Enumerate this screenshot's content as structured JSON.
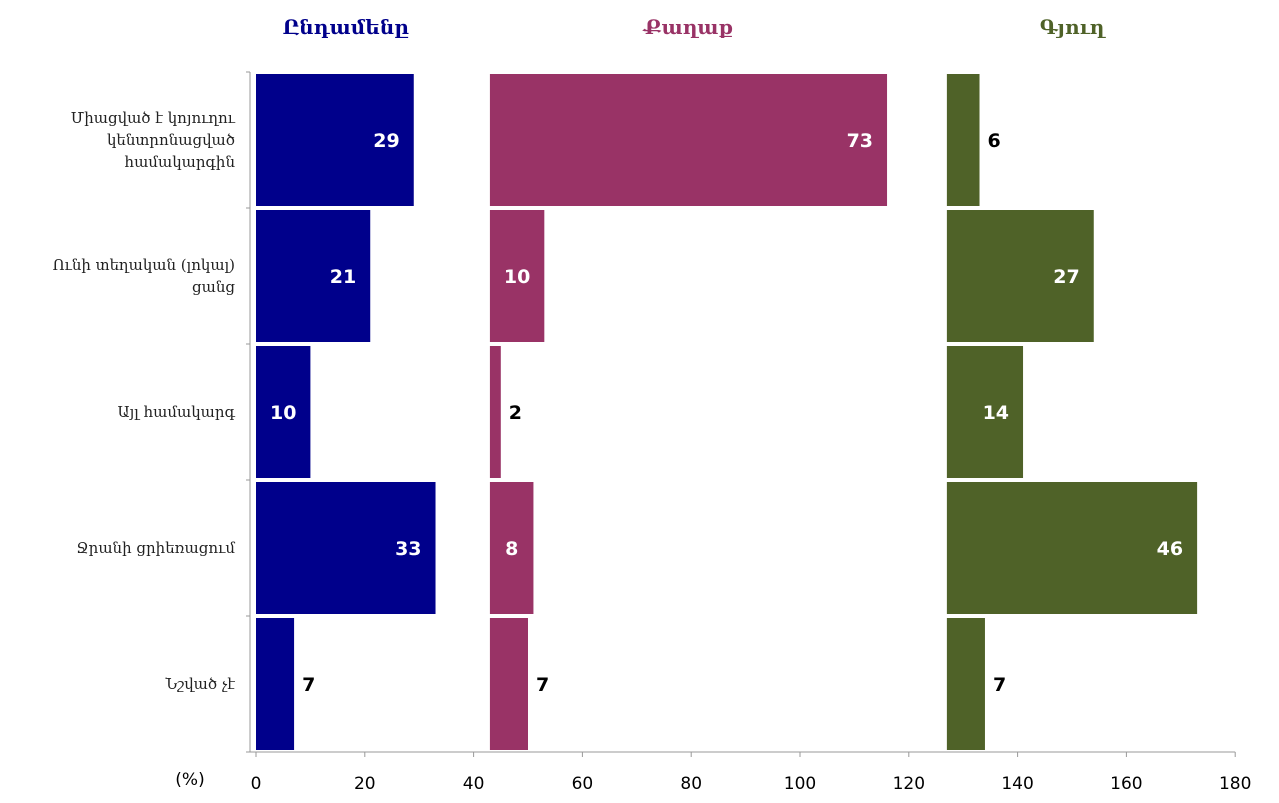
{
  "chart_data": {
    "type": "bar",
    "orientation": "horizontal",
    "layout": "stacked-panels",
    "unit_label": "(%)",
    "x_ticks": [
      0,
      20,
      40,
      60,
      80,
      100,
      120,
      140,
      160,
      180
    ],
    "xlim": [
      0,
      180
    ],
    "categories": [
      [
        "Միացված է կոյուղու",
        "կենտրոնացված",
        "համակարգին"
      ],
      [
        "Ունի տեղական (լոկալ)",
        "ցանց"
      ],
      [
        "Այլ համակարգ"
      ],
      [
        "Ջրանի ցրիեռացում"
      ],
      [
        "Նշված չէ"
      ]
    ],
    "series": [
      {
        "name": "Ընդամենը",
        "color": "#00008b",
        "offset": 0,
        "values": [
          29,
          21,
          10,
          33,
          7
        ]
      },
      {
        "name": "Քաղաք",
        "color": "#993366",
        "offset": 43,
        "values": [
          73,
          10,
          2,
          8,
          7
        ]
      },
      {
        "name": "Գյուղ",
        "color": "#4f6228",
        "offset": 127,
        "values": [
          6,
          27,
          14,
          46,
          7
        ]
      }
    ],
    "grid": false,
    "legend": "none"
  }
}
